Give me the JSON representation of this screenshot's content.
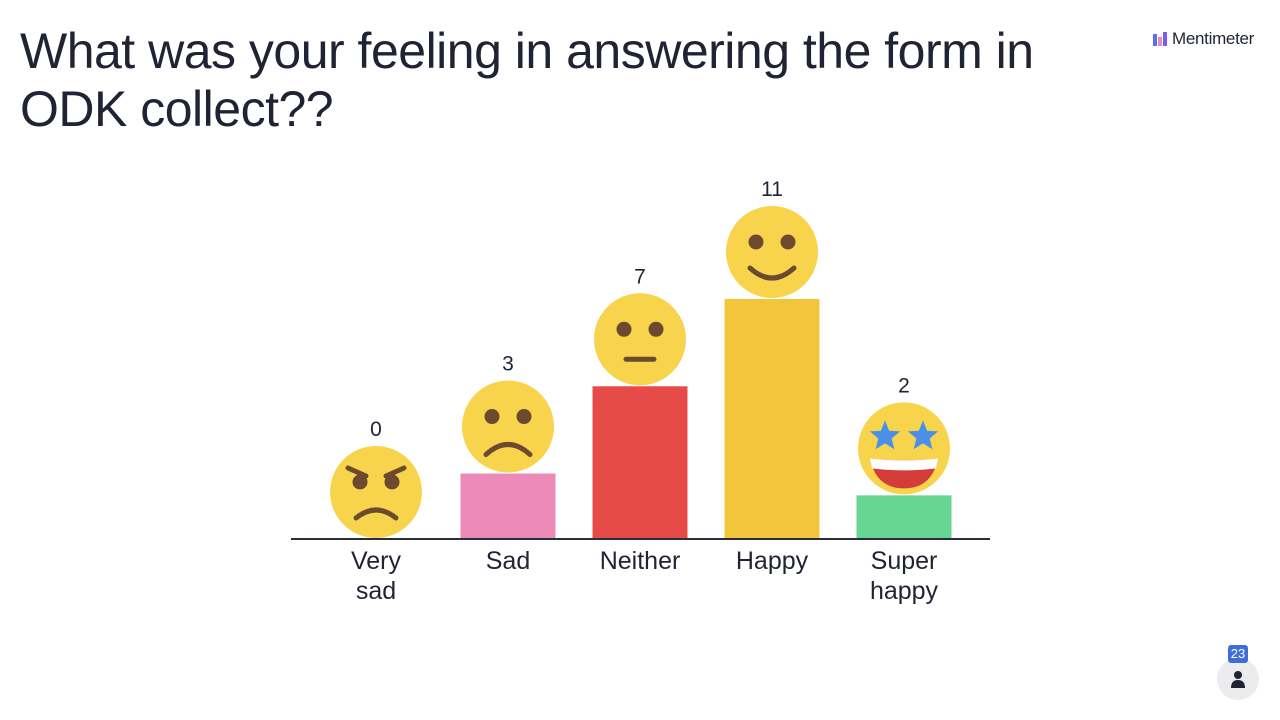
{
  "question": {
    "title": "What was your feeling in answering the form in ODK collect??"
  },
  "brand": {
    "name": "Mentimeter",
    "logo_icon": "mentimeter-logo-icon"
  },
  "participants": {
    "count": "23",
    "icon": "person-icon"
  },
  "chart_data": {
    "type": "bar",
    "categories": [
      "Very sad",
      "Sad",
      "Neither",
      "Happy",
      "Super happy"
    ],
    "category_lines": [
      [
        "Very",
        "sad"
      ],
      [
        "Sad"
      ],
      [
        "Neither"
      ],
      [
        "Happy"
      ],
      [
        "Super",
        "happy"
      ]
    ],
    "values": [
      0,
      3,
      7,
      11,
      2
    ],
    "colors": [
      "#2a2d3a",
      "#ec8bb8",
      "#e64b47",
      "#f2c53a",
      "#66d692"
    ],
    "icons": [
      "angry-face-icon",
      "frowning-face-icon",
      "neutral-face-icon",
      "smiling-face-icon",
      "star-struck-face-icon"
    ],
    "title": "",
    "xlabel": "",
    "ylabel": "",
    "ylim": [
      0,
      11
    ],
    "grid": false,
    "legend": "none"
  }
}
